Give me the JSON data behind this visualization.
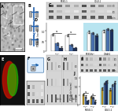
{
  "background_color": "#ffffff",
  "panels": {
    "A": {
      "bg": "#c8c8c8",
      "label": "A",
      "has_inset": true
    },
    "B": {
      "bg": "#ffffff",
      "label": "B",
      "diagram_color": "#1a5fa8",
      "box_color": "#888888"
    },
    "C": {
      "bg": "#dddddd",
      "label": "C",
      "band_rows": 3,
      "band_cols": 8
    },
    "D": {
      "label": "D",
      "highlight_color": "#b8e4f0",
      "bar_colors": [
        "#ffffff",
        "#4a72b0",
        "#1a3060"
      ],
      "bar_edge": "#222222",
      "group_centers": [
        0.18,
        0.36,
        0.63,
        0.82
      ],
      "bar_width": 0.05,
      "groups_data": [
        [
          0.82,
          0.38,
          0.18
        ],
        [
          0.78,
          0.32,
          0.15
        ],
        [
          0.95,
          0.9,
          0.8
        ],
        [
          1.0,
          1.1,
          1.05
        ]
      ],
      "ylim": [
        0,
        1.4
      ],
      "yticks": [
        0,
        0.5,
        1.0
      ],
      "ylabel": "PDI/Actin (norm)",
      "xlabel1": "MESO-1",
      "xlabel2": "COLO-1"
    },
    "E": {
      "bg": "#111111",
      "label": "E"
    },
    "F": {
      "bg": "#ffffff",
      "label": "F"
    },
    "G": {
      "bg": "#dddddd",
      "label": "G",
      "band_rows": 3,
      "band_cols": 8
    },
    "H": {
      "bg": "#dddddd",
      "label": "H",
      "band_rows": 3,
      "band_cols": 8
    },
    "I": {
      "bg": "#dddddd",
      "label": "I",
      "band_rows": 3,
      "band_cols": 8
    },
    "J": {
      "label": "J",
      "highlight_color": "#b8e4f0",
      "bar_colors": [
        "#c8a020",
        "#4a72b0",
        "#1a3060"
      ],
      "bar_edge": "#222222",
      "group_centers": [
        0.18,
        0.36,
        0.63,
        0.82
      ],
      "bar_width": 0.05,
      "groups_data": [
        [
          0.55,
          0.45,
          0.22
        ],
        [
          0.42,
          0.38,
          0.18
        ],
        [
          0.9,
          1.2,
          1.3
        ],
        [
          0.85,
          1.1,
          1.25
        ]
      ],
      "ylim": [
        0,
        1.6
      ],
      "yticks": [
        0,
        0.5,
        1.0,
        1.5
      ],
      "ylabel": "PDI/Actin (norm)",
      "xlabel1": "MESO-1",
      "xlabel2": "COLO-1"
    }
  }
}
